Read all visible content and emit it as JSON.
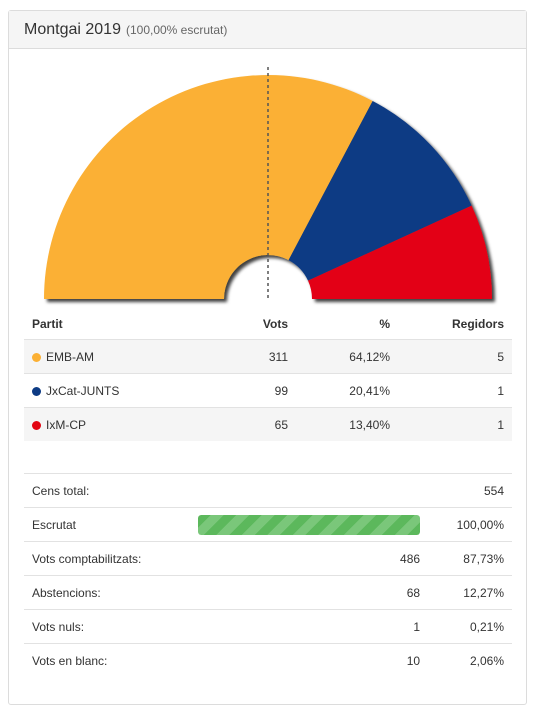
{
  "header": {
    "title": "Montgai 2019",
    "subtitle": "(100,00% escrutat)"
  },
  "chart_data": {
    "type": "pie",
    "variant": "semicircle",
    "categories": [
      "EMB-AM",
      "JxCat-JUNTS",
      "IxM-CP"
    ],
    "values": [
      64.12,
      20.41,
      13.4
    ],
    "colors": [
      "#fbb034",
      "#0d3b84",
      "#e30613"
    ],
    "majority_line": true
  },
  "results": {
    "headers": {
      "party": "Partit",
      "votes": "Vots",
      "percent": "%",
      "seats": "Regidors"
    },
    "rows": [
      {
        "party": "EMB-AM",
        "color": "#fbb034",
        "votes": "311",
        "percent": "64,12%",
        "seats": "5"
      },
      {
        "party": "JxCat-JUNTS",
        "color": "#0d3b84",
        "votes": "99",
        "percent": "20,41%",
        "seats": "1"
      },
      {
        "party": "IxM-CP",
        "color": "#e30613",
        "votes": "65",
        "percent": "13,40%",
        "seats": "1"
      }
    ]
  },
  "stats": {
    "census": {
      "label": "Cens total:",
      "value": "554"
    },
    "counted": {
      "label": "Escrutat",
      "percent": "100,00%",
      "progress": 1.0
    },
    "valid": {
      "label": "Vots comptabilitzats:",
      "value": "486",
      "percent": "87,73%"
    },
    "abstentions": {
      "label": "Abstencions:",
      "value": "68",
      "percent": "12,27%"
    },
    "null_votes": {
      "label": "Vots nuls:",
      "value": "1",
      "percent": "0,21%"
    },
    "blank_votes": {
      "label": "Vots en blanc:",
      "value": "10",
      "percent": "2,06%"
    }
  }
}
